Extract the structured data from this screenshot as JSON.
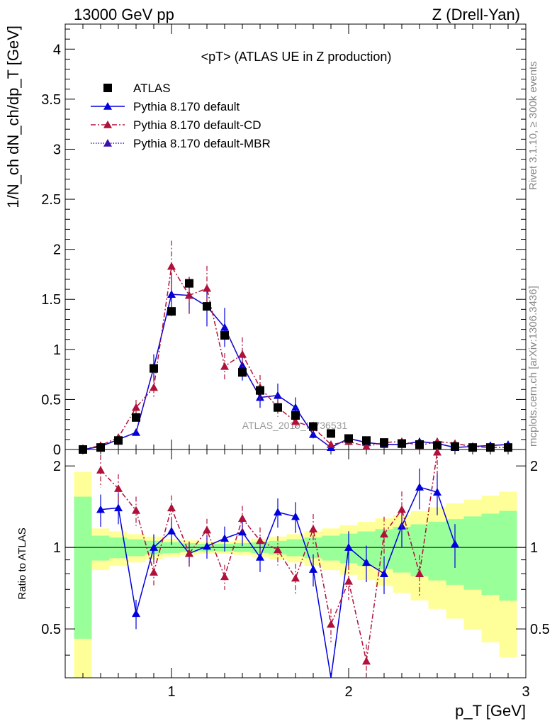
{
  "header": {
    "left": "13000 GeV pp",
    "right": "Z (Drell-Yan)"
  },
  "side_labels": {
    "rivet": "Rivet 3.1.10, ≥ 300k events",
    "source": "mcplots.cern.ch [arXiv:1306.3436]"
  },
  "colors": {
    "atlas": "#000000",
    "default": "#0000dd",
    "cd": "#b0103a",
    "mbr": "#3a10b0",
    "band_inner": "#99ff99",
    "band_outer": "#ffff99"
  },
  "chart_data": {
    "type": "scatter",
    "title": "<pT> (ATLAS UE in Z production)",
    "watermark": "ATLAS_2019_I1736531",
    "xlabel": "p_T [GeV]",
    "ylabel": "1/N_ch dN_ch/dp_T [GeV]",
    "ratio_ylabel": "Ratio to ATLAS",
    "xlim": [
      0.4,
      3.0
    ],
    "ylim": [
      0,
      4.25
    ],
    "ratio_ylim": [
      0.33,
      2.3
    ],
    "x_ticks": [
      1,
      2,
      3
    ],
    "y_ticks": [
      0,
      0.5,
      1,
      1.5,
      2,
      2.5,
      3,
      3.5,
      4
    ],
    "ratio_y_ticks": [
      0.5,
      1,
      2
    ],
    "legend": [
      "ATLAS",
      "Pythia 8.170 default",
      "Pythia 8.170 default-CD",
      "Pythia 8.170 default-MBR"
    ],
    "x": [
      0.5,
      0.6,
      0.7,
      0.8,
      0.9,
      1.0,
      1.1,
      1.2,
      1.3,
      1.4,
      1.5,
      1.6,
      1.7,
      1.8,
      1.9,
      2.0,
      2.1,
      2.2,
      2.3,
      2.4,
      2.5,
      2.6,
      2.7,
      2.8,
      2.9
    ],
    "series": [
      {
        "name": "ATLAS",
        "style": "square",
        "values": [
          0.0,
          0.02,
          0.09,
          0.32,
          0.81,
          1.38,
          1.66,
          1.43,
          1.14,
          0.77,
          0.59,
          0.42,
          0.34,
          0.23,
          0.16,
          0.11,
          0.09,
          0.07,
          0.06,
          0.05,
          0.04,
          0.03,
          0.02,
          0.02,
          0.02
        ]
      },
      {
        "name": "Pythia 8.170 default",
        "style": "solid",
        "values": [
          0.0,
          0.03,
          0.1,
          0.17,
          0.82,
          1.55,
          1.54,
          1.43,
          1.22,
          0.84,
          0.52,
          0.54,
          0.42,
          0.15,
          0.02,
          0.11,
          0.07,
          0.05,
          0.05,
          0.08,
          0.06,
          0.02,
          0.03,
          0.04,
          0.05
        ]
      },
      {
        "name": "Pythia 8.170 default-CD",
        "style": "dashdot",
        "values": [
          0.0,
          0.04,
          0.12,
          0.42,
          0.62,
          1.83,
          1.54,
          1.61,
          0.83,
          0.95,
          0.62,
          0.42,
          0.28,
          0.22,
          0.05,
          0.08,
          0.03,
          0.07,
          0.08,
          0.04,
          0.08,
          0.06,
          0.03,
          0.02,
          0.02
        ]
      },
      {
        "name": "Pythia 8.170 default-MBR",
        "style": "dotted",
        "values": [
          0.0,
          0.03,
          0.1,
          0.17,
          0.82,
          1.55,
          1.54,
          1.43,
          1.22,
          0.84,
          0.52,
          0.54,
          0.42,
          0.15,
          0.02,
          0.11,
          0.07,
          0.05,
          0.05,
          0.08,
          0.06,
          0.02,
          0.03,
          0.04,
          0.05
        ]
      }
    ],
    "ratio_series": [
      {
        "name": "Pythia 8.170 default",
        "x": [
          0.6,
          0.7,
          0.8,
          0.9,
          1.0,
          1.1,
          1.2,
          1.3,
          1.4,
          1.5,
          1.6,
          1.7,
          1.8,
          1.9,
          2.0,
          2.1,
          2.2,
          2.3,
          2.4,
          2.5,
          2.6
        ],
        "values": [
          1.38,
          1.4,
          0.57,
          1.0,
          1.15,
          0.95,
          1.01,
          1.08,
          1.14,
          0.92,
          1.35,
          1.3,
          0.83,
          0.3,
          1.0,
          0.88,
          0.8,
          1.2,
          1.67,
          1.6,
          1.03
        ]
      },
      {
        "name": "Pythia 8.170 default-CD",
        "x": [
          0.6,
          0.7,
          0.8,
          0.9,
          1.0,
          1.1,
          1.2,
          1.3,
          1.4,
          1.5,
          1.6,
          1.7,
          1.8,
          1.9,
          2.0,
          2.1,
          2.2,
          2.3,
          2.4,
          2.5
        ],
        "values": [
          1.93,
          1.65,
          1.37,
          0.81,
          1.4,
          0.95,
          1.16,
          0.78,
          1.28,
          1.06,
          0.98,
          0.77,
          1.17,
          0.52,
          0.75,
          0.38,
          1.12,
          1.38,
          0.8,
          2.25
        ]
      }
    ]
  }
}
